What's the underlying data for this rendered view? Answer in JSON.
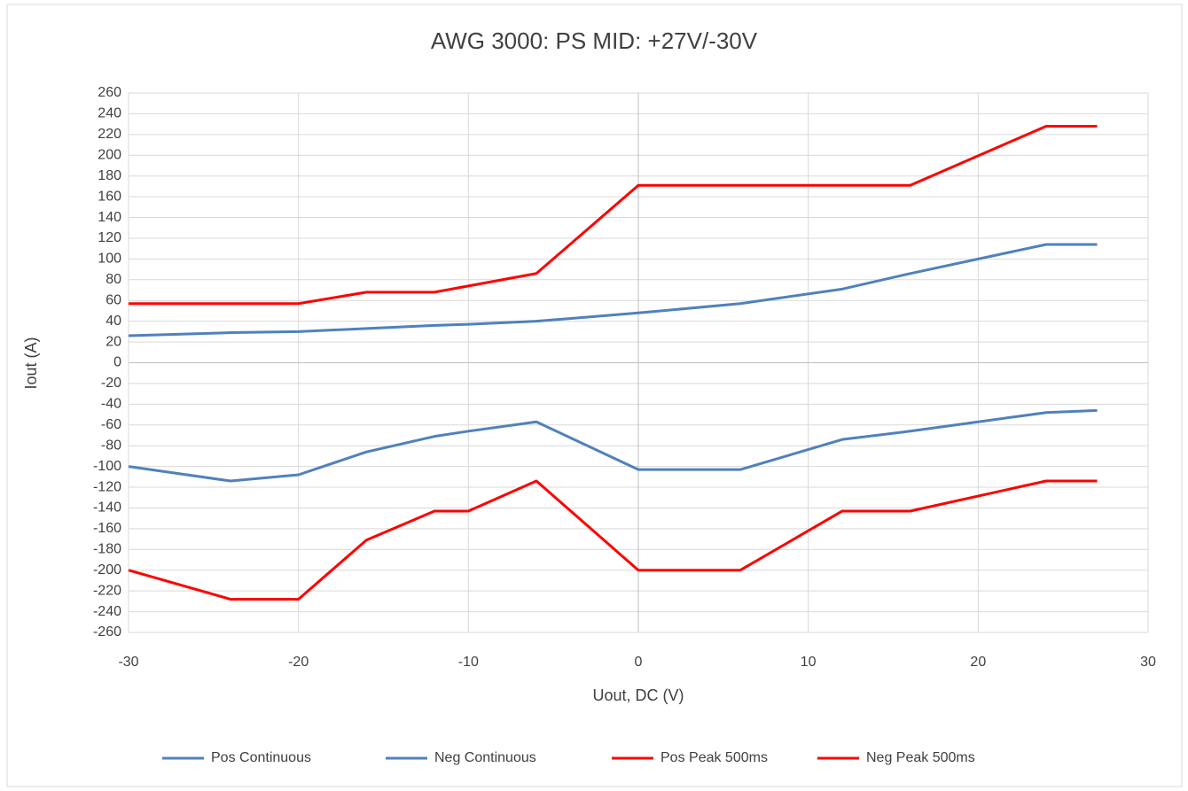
{
  "chart_data": {
    "type": "line",
    "title": "AWG 3000: PS MID: +27V/-30V",
    "x_label": "Uout, DC (V)",
    "y_label": "Iout (A)",
    "xlim": [
      -30,
      30
    ],
    "xticks": [
      -30,
      -20,
      -10,
      0,
      10,
      20,
      30
    ],
    "ylim": [
      -260,
      260
    ],
    "yticks": [
      -260,
      -240,
      -220,
      -200,
      -180,
      -160,
      -140,
      -120,
      -100,
      -80,
      -60,
      -40,
      -20,
      0,
      20,
      40,
      60,
      80,
      100,
      120,
      140,
      160,
      180,
      200,
      220,
      240,
      260
    ],
    "grid": true,
    "legend": "bottom",
    "series": [
      {
        "name": "Pos Continuous",
        "color": "#4f81bd",
        "x": [
          -30,
          -24,
          -20,
          -16,
          -12,
          -10,
          -6,
          0,
          6,
          12,
          16,
          20,
          24,
          27
        ],
        "values": [
          26,
          29,
          30,
          33,
          36,
          37,
          40,
          48,
          57,
          71,
          86,
          100,
          114,
          114
        ]
      },
      {
        "name": "Neg Continuous",
        "color": "#4f81bd",
        "x": [
          -30,
          -24,
          -20,
          -16,
          -12,
          -10,
          -6,
          0,
          6,
          12,
          16,
          20,
          24,
          27
        ],
        "values": [
          -100,
          -114,
          -108,
          -86,
          -71,
          -66,
          -57,
          -103,
          -103,
          -74,
          -66,
          -57,
          -48,
          -46
        ]
      },
      {
        "name": "Pos Peak 500ms",
        "color": "#ff0000",
        "x": [
          -30,
          -20,
          -16,
          -12,
          -6,
          0,
          16,
          24,
          27
        ],
        "values": [
          57,
          57,
          68,
          68,
          86,
          171,
          171,
          228,
          228
        ]
      },
      {
        "name": "Neg Peak 500ms",
        "color": "#ff0000",
        "x": [
          -30,
          -24,
          -20,
          -16,
          -12,
          -10,
          -6,
          0,
          6,
          12,
          16,
          24,
          27
        ],
        "values": [
          -200,
          -228,
          -228,
          -171,
          -143,
          -143,
          -114,
          -200,
          -200,
          -143,
          -143,
          -114,
          -114
        ]
      }
    ]
  }
}
